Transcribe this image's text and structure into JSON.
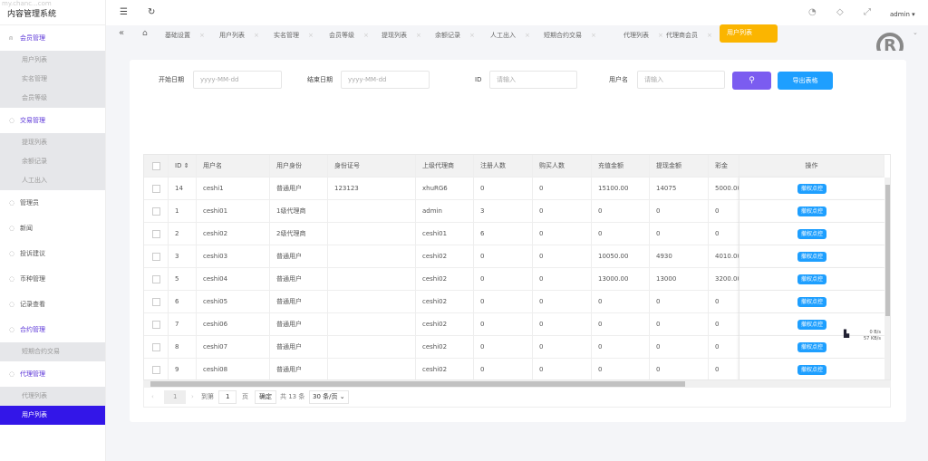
{
  "app": {
    "title": "内容管理系统",
    "watermark": "my.chanc...com"
  },
  "sidebar": {
    "groups": [
      {
        "label": "会员管理",
        "icon": "user-icon",
        "open": true,
        "items": [
          "用户列表",
          "实名管理",
          "会员等级"
        ]
      },
      {
        "label": "交易管理",
        "icon": "dollar-icon",
        "open": true,
        "items": [
          "提现列表",
          "余额记录",
          "人工出入"
        ]
      },
      {
        "label": "管理员",
        "icon": "check-circle-icon",
        "items": []
      },
      {
        "label": "新闻",
        "icon": "tag-icon",
        "items": []
      },
      {
        "label": "投诉建议",
        "icon": "link-icon",
        "items": []
      },
      {
        "label": "币种管理",
        "icon": "diamond-icon",
        "items": []
      },
      {
        "label": "记录查看",
        "icon": "copyright-icon",
        "items": []
      },
      {
        "label": "合约管理",
        "icon": "copyright-icon",
        "open": true,
        "items": [
          "短期合约交易"
        ]
      },
      {
        "label": "代理管理",
        "icon": "copyright-icon",
        "open": true,
        "items": [
          "代理列表",
          "用户列表"
        ],
        "active": "用户列表"
      }
    ]
  },
  "topbar": {
    "user": "admin"
  },
  "tabs": [
    "基础设置",
    "用户列表",
    "实名管理",
    "会员等级",
    "提现列表",
    "余额记录",
    "人工出入",
    "短期合约交易",
    "代理列表",
    "代理商会员",
    "用户列表"
  ],
  "filters": {
    "start_label": "开始日期",
    "start_ph": "yyyy-MM-dd",
    "end_label": "结束日期",
    "end_ph": "yyyy-MM-dd",
    "id_label": "ID",
    "id_ph": "请输入",
    "user_label": "用户名",
    "user_ph": "请输入",
    "export": "导出表格"
  },
  "colors": {
    "accent": "#3316e8",
    "search_btn": "#7b5cf0",
    "export_btn": "#1e9fff",
    "active_tab": "#fbb500"
  },
  "table": {
    "headers": [
      "ID",
      "用户名",
      "用户身份",
      "身份证号",
      "上级代理商",
      "注册人数",
      "购买人数",
      "充值金额",
      "提现金额",
      "彩金",
      "操作"
    ],
    "action": "撤权点控",
    "rows": [
      [
        "14",
        "ceshi1",
        "普通用户",
        "123123",
        "xhuRG6",
        "0",
        "0",
        "15100.00",
        "14075",
        "5000.00"
      ],
      [
        "1",
        "ceshi01",
        "1级代理商",
        "",
        "admin",
        "3",
        "0",
        "0",
        "0",
        "0"
      ],
      [
        "2",
        "ceshi02",
        "2级代理商",
        "",
        "ceshi01",
        "6",
        "0",
        "0",
        "0",
        "0"
      ],
      [
        "3",
        "ceshi03",
        "普通用户",
        "",
        "ceshi02",
        "0",
        "0",
        "10050.00",
        "4930",
        "4010.00"
      ],
      [
        "5",
        "ceshi04",
        "普通用户",
        "",
        "ceshi02",
        "0",
        "0",
        "13000.00",
        "13000",
        "3200.00"
      ],
      [
        "6",
        "ceshi05",
        "普通用户",
        "",
        "ceshi02",
        "0",
        "0",
        "0",
        "0",
        "0"
      ],
      [
        "7",
        "ceshi06",
        "普通用户",
        "",
        "ceshi02",
        "0",
        "0",
        "0",
        "0",
        "0"
      ],
      [
        "8",
        "ceshi07",
        "普通用户",
        "",
        "ceshi02",
        "0",
        "0",
        "0",
        "0",
        "0"
      ],
      [
        "9",
        "ceshi08",
        "普通用户",
        "",
        "ceshi02",
        "0",
        "0",
        "0",
        "0",
        "0"
      ]
    ]
  },
  "pagination": {
    "current": "1",
    "goto_label": "到第",
    "goto_value": "1",
    "page_unit": "页",
    "confirm": "确定",
    "total": "共 13 条",
    "page_size": "30 条/页"
  },
  "netspeed": {
    "up": "0 B/s",
    "down": "57 KB/s"
  }
}
